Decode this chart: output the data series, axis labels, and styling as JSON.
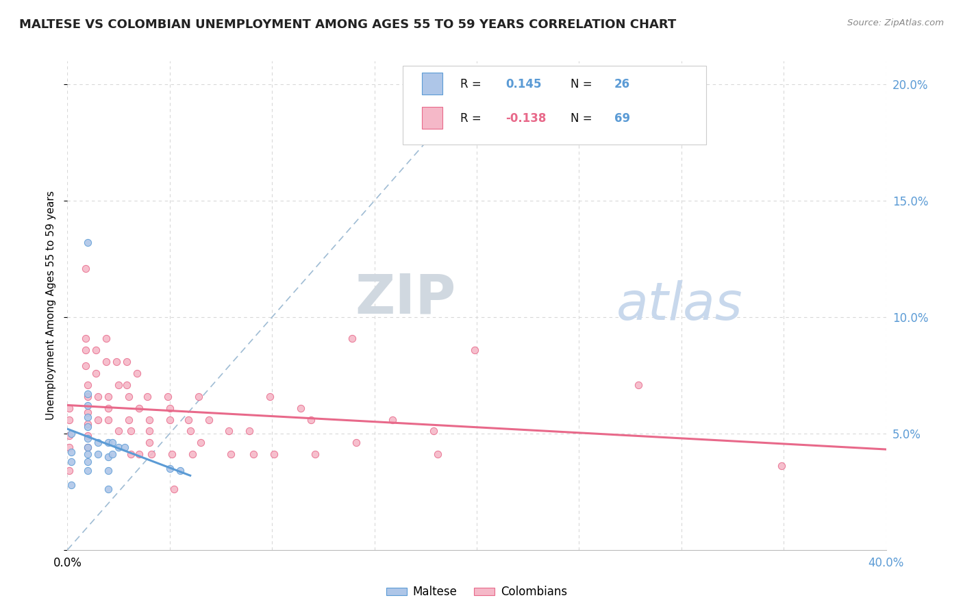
{
  "title": "MALTESE VS COLOMBIAN UNEMPLOYMENT AMONG AGES 55 TO 59 YEARS CORRELATION CHART",
  "source": "Source: ZipAtlas.com",
  "ylabel": "Unemployment Among Ages 55 to 59 years",
  "xlim": [
    0,
    0.4
  ],
  "ylim": [
    0,
    0.21
  ],
  "yticks": [
    0.0,
    0.05,
    0.1,
    0.15,
    0.2
  ],
  "xtick_positions": [
    0.0,
    0.05,
    0.1,
    0.15,
    0.2,
    0.25,
    0.3,
    0.35,
    0.4
  ],
  "maltese_R": 0.145,
  "maltese_N": 26,
  "colombian_R": -0.138,
  "colombian_N": 69,
  "maltese_color": "#aec6e8",
  "colombian_color": "#f5b8c8",
  "maltese_edge_color": "#5b9bd5",
  "colombian_edge_color": "#e8698a",
  "maltese_line_color": "#5b9bd5",
  "colombian_line_color": "#e8698a",
  "diagonal_color": "#9fbcd4",
  "background_color": "#ffffff",
  "grid_color": "#d8d8d8",
  "right_axis_color": "#5b9bd5",
  "maltese_x": [
    0.002,
    0.002,
    0.002,
    0.002,
    0.01,
    0.01,
    0.01,
    0.01,
    0.01,
    0.01,
    0.01,
    0.01,
    0.01,
    0.01,
    0.015,
    0.015,
    0.02,
    0.02,
    0.02,
    0.02,
    0.022,
    0.022,
    0.025,
    0.05,
    0.055,
    0.028
  ],
  "maltese_y": [
    0.05,
    0.042,
    0.038,
    0.028,
    0.132,
    0.067,
    0.062,
    0.057,
    0.053,
    0.048,
    0.044,
    0.041,
    0.038,
    0.034,
    0.046,
    0.041,
    0.046,
    0.04,
    0.034,
    0.026,
    0.046,
    0.041,
    0.044,
    0.035,
    0.034,
    0.044
  ],
  "colombian_x": [
    0.001,
    0.001,
    0.001,
    0.001,
    0.001,
    0.009,
    0.009,
    0.009,
    0.009,
    0.01,
    0.01,
    0.01,
    0.01,
    0.01,
    0.01,
    0.014,
    0.014,
    0.015,
    0.015,
    0.019,
    0.019,
    0.02,
    0.02,
    0.02,
    0.024,
    0.025,
    0.025,
    0.029,
    0.029,
    0.03,
    0.03,
    0.031,
    0.031,
    0.034,
    0.035,
    0.035,
    0.039,
    0.04,
    0.04,
    0.04,
    0.041,
    0.049,
    0.05,
    0.05,
    0.051,
    0.052,
    0.059,
    0.06,
    0.061,
    0.064,
    0.065,
    0.069,
    0.079,
    0.08,
    0.089,
    0.091,
    0.099,
    0.101,
    0.114,
    0.119,
    0.121,
    0.139,
    0.141,
    0.159,
    0.179,
    0.181,
    0.199,
    0.279,
    0.349
  ],
  "colombian_y": [
    0.061,
    0.056,
    0.049,
    0.044,
    0.034,
    0.121,
    0.091,
    0.086,
    0.079,
    0.071,
    0.066,
    0.059,
    0.054,
    0.049,
    0.044,
    0.086,
    0.076,
    0.066,
    0.056,
    0.091,
    0.081,
    0.066,
    0.061,
    0.056,
    0.081,
    0.071,
    0.051,
    0.081,
    0.071,
    0.066,
    0.056,
    0.051,
    0.041,
    0.076,
    0.061,
    0.041,
    0.066,
    0.056,
    0.051,
    0.046,
    0.041,
    0.066,
    0.061,
    0.056,
    0.041,
    0.026,
    0.056,
    0.051,
    0.041,
    0.066,
    0.046,
    0.056,
    0.051,
    0.041,
    0.051,
    0.041,
    0.066,
    0.041,
    0.061,
    0.056,
    0.041,
    0.091,
    0.046,
    0.056,
    0.051,
    0.041,
    0.086,
    0.071,
    0.036
  ]
}
